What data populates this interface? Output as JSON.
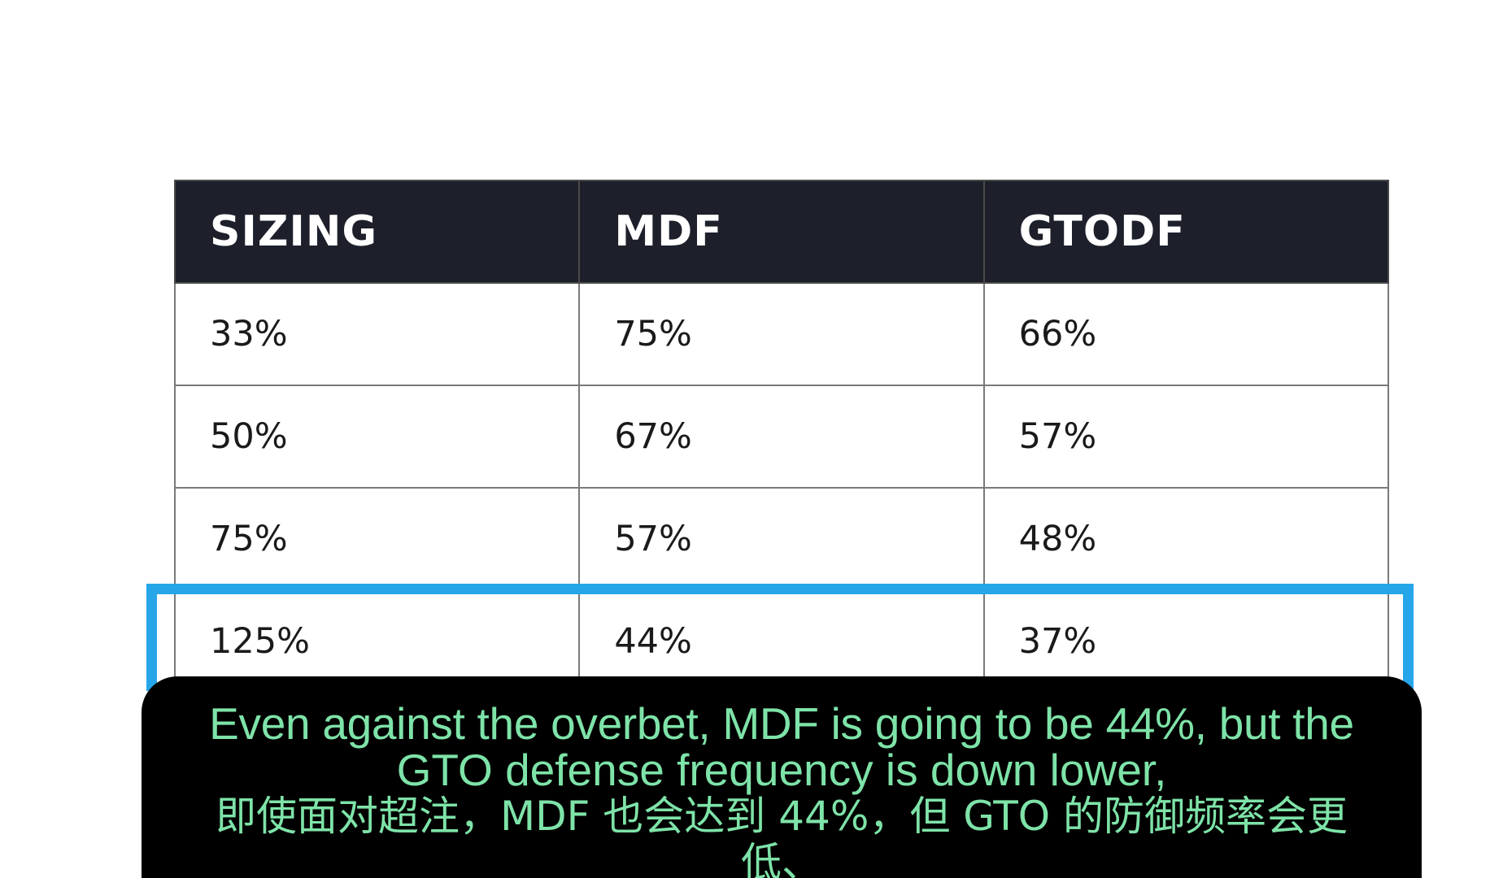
{
  "table": {
    "headers": [
      "SIZING",
      "MDF",
      "GTODF"
    ],
    "rows": [
      [
        "33%",
        "75%",
        "66%"
      ],
      [
        "50%",
        "67%",
        "57%"
      ],
      [
        "75%",
        "57%",
        "48%"
      ],
      [
        "125%",
        "44%",
        "37%"
      ]
    ],
    "highlighted_row_index": 3
  },
  "colors": {
    "header_background": "#1d1f2a",
    "header_text": "#ffffff",
    "highlight_border": "#26a6e8",
    "subtitle_background": "#000000",
    "subtitle_text": "#7ee3a8"
  },
  "subtitle": {
    "english_line_1": "Even against the overbet, MDF is going to be 44%, but the",
    "english_line_2": "GTO defense frequency is down lower,",
    "chinese_line_1": "即使面对超注，MDF 也会达到 44%，但 GTO 的防御频率会更",
    "chinese_line_2": "低、"
  }
}
